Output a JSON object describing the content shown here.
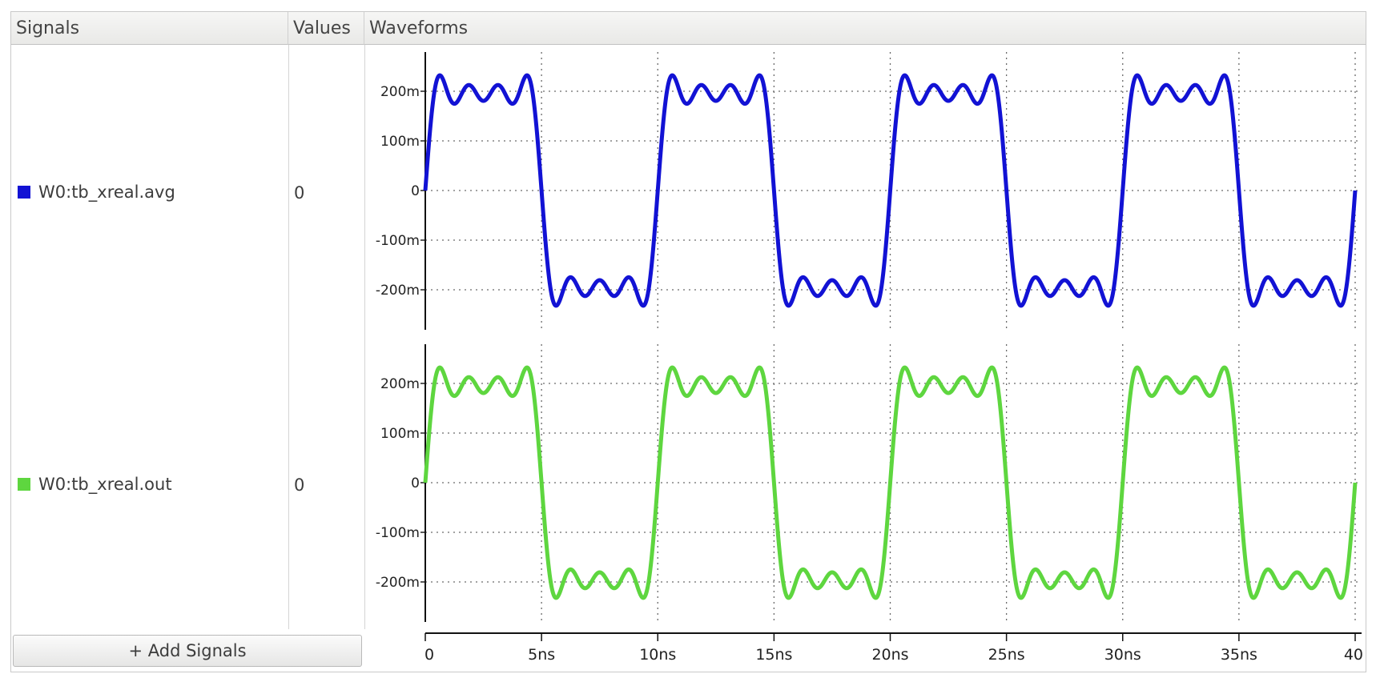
{
  "headers": {
    "signals": "Signals",
    "values": "Values",
    "waveforms": "Waveforms"
  },
  "signals": [
    {
      "name": "W0:tb_xreal.avg",
      "value": "0",
      "color": "#1212d4"
    },
    {
      "name": "W0:tb_xreal.out",
      "value": "0",
      "color": "#5ed63f"
    }
  ],
  "add_signals_label": "+ Add Signals",
  "chart_data": {
    "type": "line",
    "x_unit": "ns",
    "x_range": [
      0,
      40
    ],
    "y_range": [
      -0.25,
      0.25
    ],
    "y_ticks": [
      {
        "value": 0.2,
        "label": "200m"
      },
      {
        "value": 0.1,
        "label": "100m"
      },
      {
        "value": 0,
        "label": "0"
      },
      {
        "value": -0.1,
        "label": "-100m"
      },
      {
        "value": -0.2,
        "label": "-200m"
      }
    ],
    "x_ticks": [
      {
        "value": 0,
        "label": "0"
      },
      {
        "value": 5,
        "label": "5ns"
      },
      {
        "value": 10,
        "label": "10ns"
      },
      {
        "value": 15,
        "label": "15ns"
      },
      {
        "value": 20,
        "label": "20ns"
      },
      {
        "value": 25,
        "label": "25ns"
      },
      {
        "value": 30,
        "label": "30ns"
      },
      {
        "value": 35,
        "label": "35ns"
      },
      {
        "value": 40,
        "label": "40"
      }
    ],
    "grid": true,
    "waveform": "square wave (period 10ns, amplitude ~200m) with Gibbs ringing, peaks ~230m",
    "series": [
      {
        "name": "W0:tb_xreal.avg",
        "color": "#1212d4"
      },
      {
        "name": "W0:tb_xreal.out",
        "color": "#5ed63f"
      }
    ]
  }
}
